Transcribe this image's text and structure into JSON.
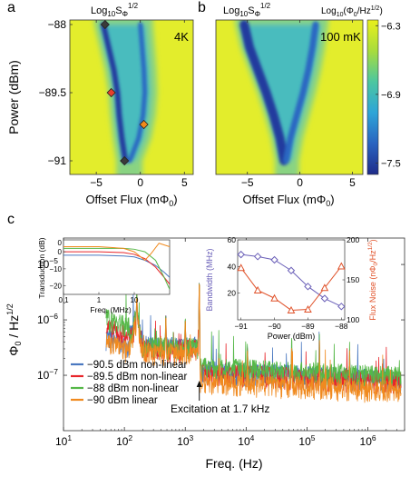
{
  "panel_labels": {
    "a": "a",
    "b": "b",
    "c": "c"
  },
  "chart_data": [
    {
      "type": "heatmap",
      "panel": "a",
      "title": "Log10SΦ^1/2",
      "title_parts": {
        "base": "Log",
        "sub": "10",
        "S": "S",
        "phi": "Φ",
        "sup": "1/2"
      },
      "annotation": "4K",
      "xlabel": "Offset Flux (mΦ",
      "xlabel_sub": "0",
      "xlabel_close": ")",
      "ylabel": "Power (dBm)",
      "xlim": [
        -8,
        6
      ],
      "ylim": [
        -91.3,
        -87.9
      ],
      "xticks": [
        -5,
        0,
        5
      ],
      "xtick_labels": [
        "−5",
        "0",
        "5"
      ],
      "yticks": [
        -88,
        -89.5,
        -91
      ],
      "ytick_labels": [
        "−88",
        "−89.5",
        "−91"
      ],
      "ridge": [
        {
          "p": -88,
          "x": -4.2
        },
        {
          "p": -88.5,
          "x": -3.6
        },
        {
          "p": -89,
          "x": -3.0
        },
        {
          "p": -89.5,
          "x": -2.6
        },
        {
          "p": -90,
          "x": -2.4
        },
        {
          "p": -90.5,
          "x": -2.1
        },
        {
          "p": -91,
          "x": -1.7
        }
      ],
      "dip_right": [
        {
          "p": -88,
          "x": 0.0
        },
        {
          "p": -88.5,
          "x": 0.2
        },
        {
          "p": -89,
          "x": 0.4
        },
        {
          "p": -89.5,
          "x": 0.5
        },
        {
          "p": -90,
          "x": 0.3
        },
        {
          "p": -90.5,
          "x": -0.2
        },
        {
          "p": -91,
          "x": -1.2
        }
      ],
      "markers": [
        {
          "x": -4.0,
          "p": -88.0,
          "color": "#3a3a3a"
        },
        {
          "x": -3.3,
          "p": -89.5,
          "color": "#e8402c"
        },
        {
          "x": 0.4,
          "p": -90.2,
          "color": "#f28a1b"
        },
        {
          "x": -1.8,
          "p": -91.0,
          "color": "#3a3a3a"
        }
      ]
    },
    {
      "type": "heatmap",
      "panel": "b",
      "title": "Log10SΦ^1/2",
      "title_parts": {
        "base": "Log",
        "sub": "10",
        "S": "S",
        "phi": "Φ",
        "sup": "1/2"
      },
      "annotation": "100 mK",
      "xlabel": "Offset Flux (mΦ",
      "xlabel_sub": "0",
      "xlabel_close": ")",
      "xlim": [
        -8,
        6
      ],
      "ylim": [
        -91.3,
        -87.9
      ],
      "xticks": [
        -5,
        0,
        5
      ],
      "xtick_labels": [
        "−5",
        "0",
        "5"
      ],
      "ridge": [
        {
          "p": -88,
          "x": -5.3
        },
        {
          "p": -88.5,
          "x": -4.8
        },
        {
          "p": -89,
          "x": -4.0
        },
        {
          "p": -89.5,
          "x": -3.2
        },
        {
          "p": -90,
          "x": -2.5
        },
        {
          "p": -90.5,
          "x": -1.9
        },
        {
          "p": -91,
          "x": -1.5
        }
      ],
      "dip_right": [
        {
          "p": -88,
          "x": 1.5
        },
        {
          "p": -88.5,
          "x": 1.2
        },
        {
          "p": -89,
          "x": 0.8
        },
        {
          "p": -89.5,
          "x": 0.3
        },
        {
          "p": -90,
          "x": -0.3
        },
        {
          "p": -90.5,
          "x": -0.9
        },
        {
          "p": -91,
          "x": -1.3
        }
      ],
      "colorbar": {
        "label": "Log10(Φ0/Hz^1/2)",
        "label_parts": {
          "base": "Log",
          "sub": "10",
          "open": "(Φ",
          "sub2": "0",
          "mid": "/Hz",
          "sup": "1/2",
          "close": ")"
        },
        "range": [
          -7.6,
          -6.25
        ],
        "ticks": [
          -6.3,
          -6.9,
          -7.5
        ],
        "tick_labels": [
          "−6.3",
          "−6.9",
          "−7.5"
        ]
      }
    },
    {
      "type": "line",
      "panel": "c",
      "xscale": "log",
      "yscale": "log",
      "xlabel": "Freq. (Hz)",
      "ylabel": "Φ 0 / Hz 1/2",
      "ylabel_parts": {
        "phi": "Φ",
        "sub": "0",
        "mid": " / Hz",
        "sup": "1/2"
      },
      "xlim": [
        10,
        4000000
      ],
      "ylim": [
        1e-08,
        3e-05
      ],
      "xticks": [
        10,
        100,
        1000,
        10000,
        100000,
        1000000
      ],
      "xtick_base": "10",
      "xtick_exp": [
        "1",
        "2",
        "3",
        "4",
        "5",
        "6"
      ],
      "yticks": [
        1e-07,
        1e-06,
        1e-05
      ],
      "ytick_base": "10",
      "ytick_exp": [
        "−7",
        "−6",
        "−5"
      ],
      "annotation": "Excitation at 1.7 kHz",
      "excitation_hz": 1700,
      "legend_position": "bottom-left",
      "series": [
        {
          "name": "−90.5 dBm non-linear",
          "color": "#4a78c0",
          "floor_low": 3.4e-07,
          "floor_high": 1.25e-07,
          "start": 5e-07
        },
        {
          "name": "−89.5 dBm non-linear",
          "color": "#e8262b",
          "floor_low": 3e-07,
          "floor_high": 1.15e-07,
          "start": 7.5e-07
        },
        {
          "name": "−88 dBm non-linear",
          "color": "#55b848",
          "floor_low": 3.3e-07,
          "floor_high": 1.45e-07,
          "start": 1.1e-06
        },
        {
          "name": "−90 dBm linear",
          "color": "#f08a1f",
          "floor_low": 2.6e-07,
          "floor_high": 8e-08,
          "start": 4.2e-07
        }
      ],
      "insets": [
        {
          "type": "line",
          "xscale": "log",
          "xlabel": "Freq. (MHz)",
          "ylabel": "Transduction (dB)",
          "xlim": [
            0.1,
            100
          ],
          "ylim": [
            -25,
            7
          ],
          "xticks": [
            0.1,
            1,
            10
          ],
          "xtick_labels": [
            "0.1",
            "1",
            "10"
          ],
          "yticks": [
            0,
            -10,
            -20
          ],
          "ytick_labels": [
            "0",
            "−10",
            "−20"
          ],
          "ytick_extra": "0",
          "series": [
            {
              "name": "−90.5 dBm",
              "color": "#4a78c0",
              "x": [
                0.1,
                1,
                5,
                10,
                20,
                40,
                70,
                100
              ],
              "y": [
                -2,
                -2,
                -2.5,
                -3,
                -5,
                -8,
                -12,
                -15
              ]
            },
            {
              "name": "−89.5 dBm",
              "color": "#e8262b",
              "x": [
                0.1,
                1,
                5,
                10,
                20,
                40,
                70,
                100
              ],
              "y": [
                0,
                0,
                -0.5,
                -1.5,
                -4,
                -9,
                -15,
                -19
              ]
            },
            {
              "name": "−88 dBm",
              "color": "#55b848",
              "x": [
                0.1,
                1,
                5,
                10,
                20,
                40,
                70,
                100
              ],
              "y": [
                2,
                2,
                2,
                1.5,
                0,
                -5,
                -15,
                -22
              ]
            },
            {
              "name": "−90 dBm",
              "color": "#f08a1f",
              "x": [
                0.1,
                1,
                5,
                10,
                20,
                30,
                50,
                100
              ],
              "y": [
                3,
                3,
                2,
                0,
                -5,
                -1,
                5,
                3
              ]
            }
          ]
        },
        {
          "type": "line",
          "xlabel": "Power (dBm)",
          "ylabel_left": "Bandwidth (MHz)",
          "ylabel_right": "Flux Noise (nΦ 0 /Hz 1/2)",
          "ylabel_right_parts": {
            "open": "Flux Noise (nΦ",
            "sub": "0",
            "mid": "/Hz",
            "sup": "1/2",
            "close": ")"
          },
          "xlim": [
            -91.1,
            -87.9
          ],
          "ylim_left": [
            0,
            60
          ],
          "ylim_right": [
            100,
            200
          ],
          "xticks": [
            -91,
            -90,
            -89,
            -88
          ],
          "xtick_labels": [
            "−91",
            "−90",
            "−89",
            "−88"
          ],
          "yticks_left": [
            20,
            40,
            60
          ],
          "ytick_labels_left": [
            "20",
            "40",
            "60"
          ],
          "yticks_right": [
            100,
            150,
            200
          ],
          "ytick_labels_right": [
            "100",
            "150",
            "200"
          ],
          "series": [
            {
              "name": "Bandwidth",
              "axis": "left",
              "color": "#6a5fb8",
              "marker": "diamond",
              "x": [
                -91,
                -90.5,
                -90,
                -89.5,
                -89,
                -88.5,
                -88
              ],
              "y": [
                49,
                47.5,
                45,
                37,
                25,
                16,
                10
              ]
            },
            {
              "name": "Flux Noise",
              "axis": "right",
              "color": "#e0522a",
              "marker": "triangle",
              "x": [
                -91,
                -90.5,
                -90,
                -89.5,
                -89,
                -88.5,
                -88
              ],
              "y": [
                165,
                137,
                127,
                112,
                113,
                140,
                167
              ]
            }
          ]
        }
      ]
    }
  ]
}
